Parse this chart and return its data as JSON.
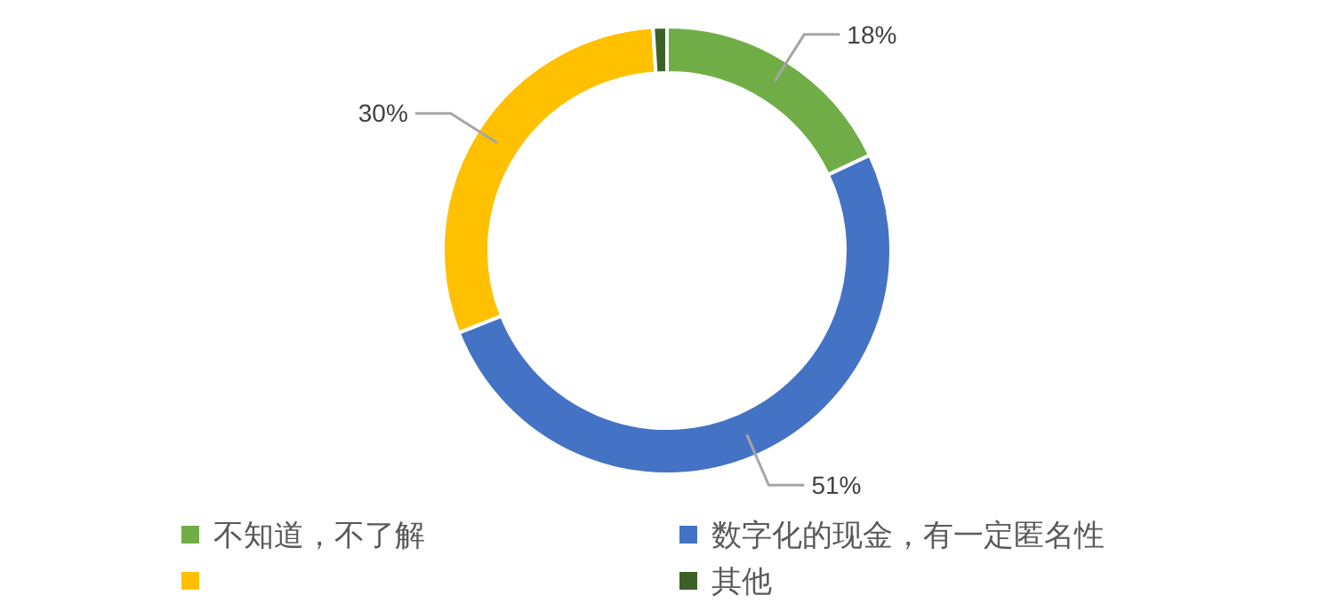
{
  "chart_data": {
    "type": "donut",
    "categories": [
      "不知道，不了解",
      "数字化的现金，有一定匿名性",
      null,
      "其他"
    ],
    "values": [
      18,
      51,
      30,
      1
    ],
    "colors": [
      "#70ad47",
      "#4472c4",
      "#ffc000",
      "#3b6127"
    ],
    "value_labels": [
      "18%",
      "51%",
      "30%",
      null
    ],
    "legend": "bottom"
  }
}
